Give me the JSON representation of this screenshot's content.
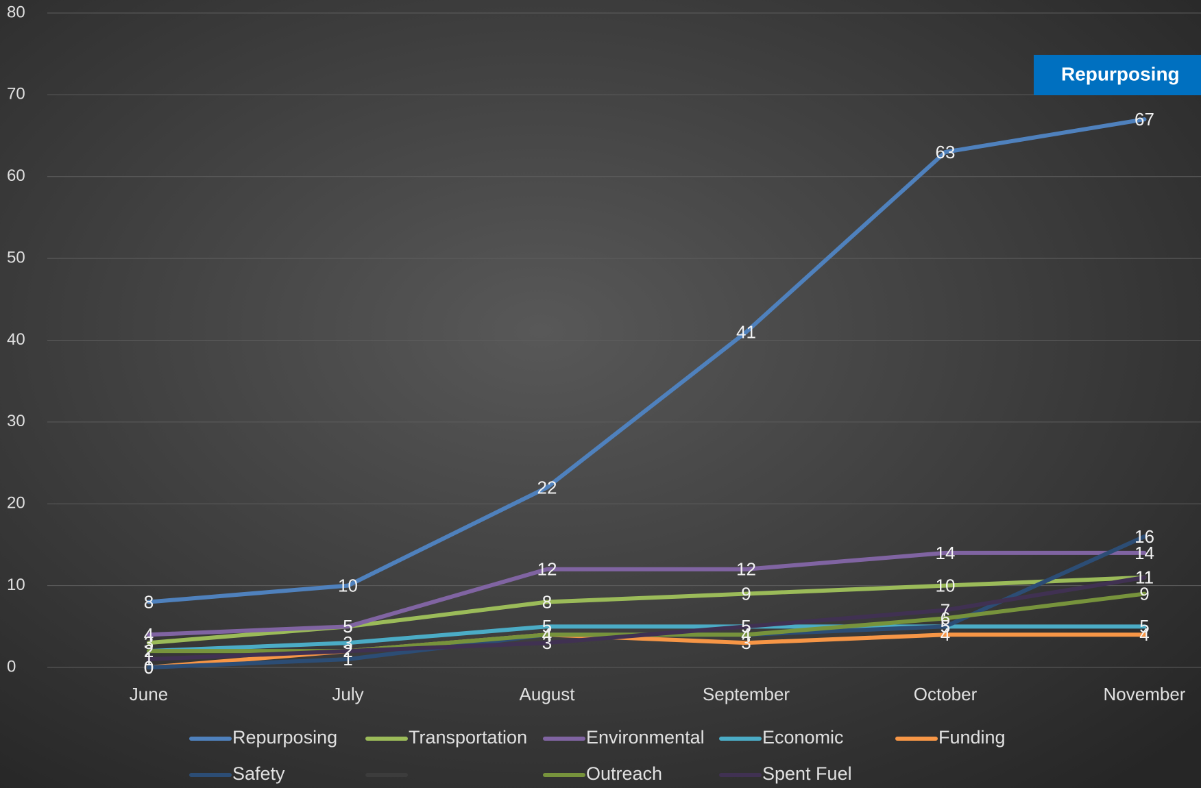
{
  "chart_data": {
    "type": "line",
    "categories": [
      "June",
      "July",
      "August",
      "September",
      "October",
      "November"
    ],
    "series": [
      {
        "name": "Repurposing",
        "color": "#4f81bd",
        "values": [
          8,
          10,
          22,
          41,
          63,
          67
        ]
      },
      {
        "name": "Transportation",
        "color": "#9bbb59",
        "values": [
          3,
          5,
          8,
          9,
          10,
          11
        ]
      },
      {
        "name": "Environmental",
        "color": "#8064a2",
        "values": [
          4,
          5,
          12,
          12,
          14,
          14
        ]
      },
      {
        "name": "Economic",
        "color": "#4bacc6",
        "values": [
          2,
          3,
          5,
          5,
          5,
          5
        ]
      },
      {
        "name": "Funding",
        "color": "#f79646",
        "values": [
          0,
          2,
          4,
          3,
          4,
          4
        ]
      },
      {
        "name": "Safety",
        "color": "#2c4d75",
        "values": [
          0,
          1,
          4,
          4,
          5,
          16
        ]
      },
      {
        "name": null,
        "color": "#3c3c3c",
        "values": [
          null,
          null,
          null,
          null,
          null,
          null
        ]
      },
      {
        "name": "Outreach",
        "color": "#77933c",
        "values": [
          2,
          2,
          4,
          4,
          6,
          9
        ]
      },
      {
        "name": "Spent Fuel",
        "color": "#403152",
        "values": [
          1,
          2,
          3,
          5,
          7,
          11
        ]
      }
    ],
    "ylim": [
      0,
      80
    ],
    "yticks": [
      0,
      10,
      20,
      30,
      40,
      50,
      60,
      70,
      80
    ],
    "grid": true,
    "legend": "bottom",
    "tooltip": "Repurposing"
  }
}
